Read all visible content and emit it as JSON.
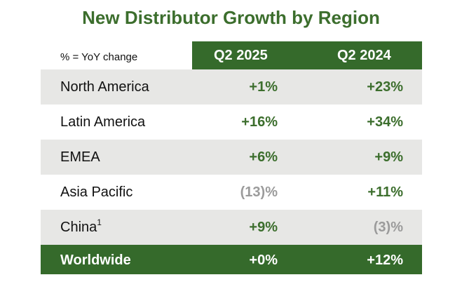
{
  "title": "New Distributor Growth by Region",
  "table": {
    "note": "% = YoY change",
    "columns": [
      "Q2 2025",
      "Q2 2024"
    ],
    "rows": [
      {
        "region": "North America",
        "footnote": "",
        "q2_2025": "+1%",
        "q2_2024": "+23%"
      },
      {
        "region": "Latin America",
        "footnote": "",
        "q2_2025": "+16%",
        "q2_2024": "+34%"
      },
      {
        "region": "EMEA",
        "footnote": "",
        "q2_2025": "+6%",
        "q2_2024": "+9%"
      },
      {
        "region": "Asia Pacific",
        "footnote": "",
        "q2_2025": "(13)%",
        "q2_2024": "+11%"
      },
      {
        "region": "China",
        "footnote": "1",
        "q2_2025": "+9%",
        "q2_2024": "(3)%"
      }
    ],
    "total": {
      "region": "Worldwide",
      "q2_2025": "+0%",
      "q2_2024": "+12%"
    }
  },
  "colors": {
    "accent_green": "#356a2b",
    "positive_text": "#3c6e2d",
    "negative_text": "#9b9b9b",
    "row_shade": "#e7e7e5"
  }
}
